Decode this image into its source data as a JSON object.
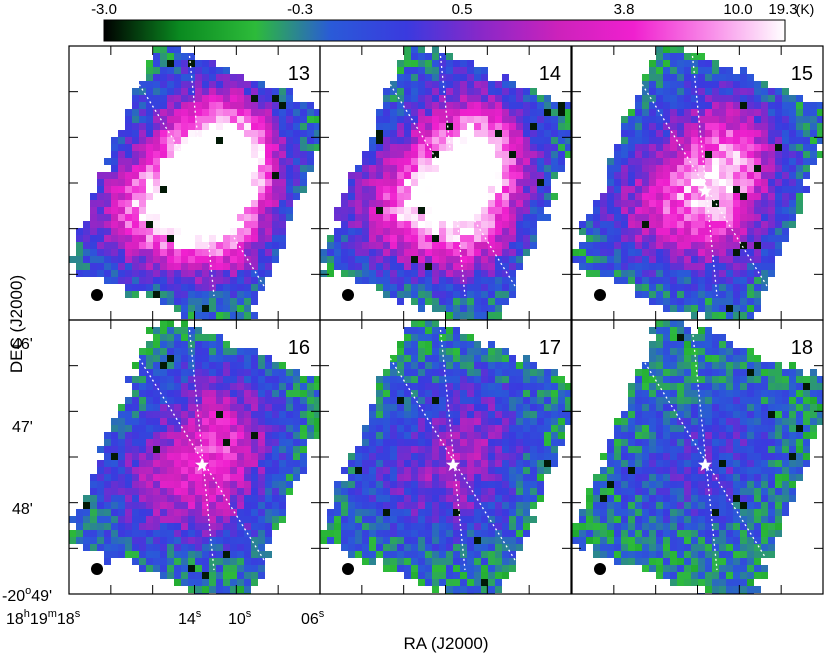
{
  "chart_data": {
    "type": "heatmap",
    "title": "",
    "colorbar": {
      "unit": "(K)",
      "ticks": [
        "-3.0",
        "-0.3",
        "0.5",
        "3.8",
        "10.0",
        "19.3"
      ],
      "colormap": [
        "#000000",
        "#0a8a20",
        "#2dbb3a",
        "#2a5ad8",
        "#3a3adf",
        "#8a28c8",
        "#cc22bb",
        "#f020cf",
        "#f88ae8",
        "#ffffff"
      ]
    },
    "xlabel": "RA (J2000)",
    "ylabel": "DEC (J2000)",
    "x_ticks": [
      {
        "h": "18",
        "m": "19",
        "s": "18"
      },
      {
        "s": "14"
      },
      {
        "s": "10"
      },
      {
        "s": "06"
      }
    ],
    "y_ticks": [
      {
        "text": "46'"
      },
      {
        "text": "47'"
      },
      {
        "text": "48'"
      },
      {
        "deg": "-20",
        "min": "49'"
      }
    ],
    "panels": [
      {
        "label": "13",
        "intensity": 1.0
      },
      {
        "label": "14",
        "intensity": 0.82
      },
      {
        "label": "15",
        "intensity": 0.58
      },
      {
        "label": "16",
        "intensity": 0.42
      },
      {
        "label": "17",
        "intensity": 0.26
      },
      {
        "label": "18",
        "intensity": 0.14
      }
    ],
    "markers": {
      "source": "star",
      "beam": "filled-circle",
      "lines": "dotted-white"
    }
  }
}
